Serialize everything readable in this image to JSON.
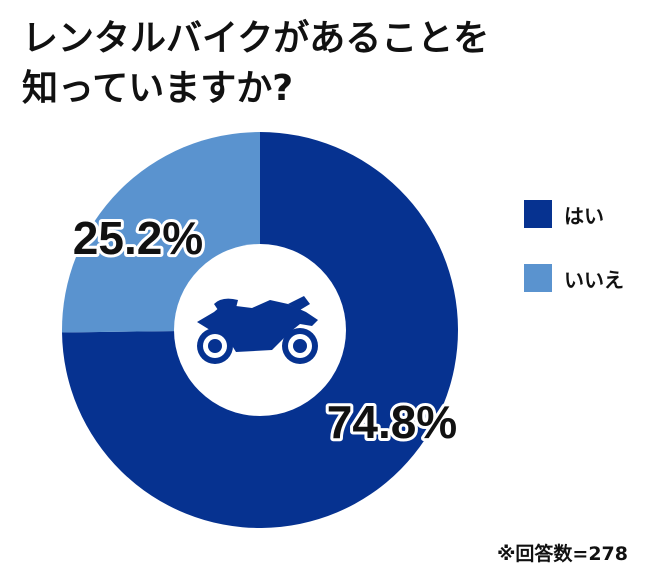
{
  "title_lines": [
    "レンタルバイクがあることを",
    "知っていますか?"
  ],
  "note": "※回答数=278",
  "icon": "motorcycle-icon",
  "colors": {
    "yes": "#063290",
    "no": "#5a93cf"
  },
  "chart_data": {
    "type": "pie",
    "donut": true,
    "title": "レンタルバイクがあることを知っていますか?",
    "categories": [
      "はい",
      "いいえ"
    ],
    "values": [
      74.8,
      25.2
    ],
    "labels": [
      "74.8%",
      "25.2%"
    ],
    "unit": "%",
    "legend_position": "right",
    "sample_size": 278
  }
}
